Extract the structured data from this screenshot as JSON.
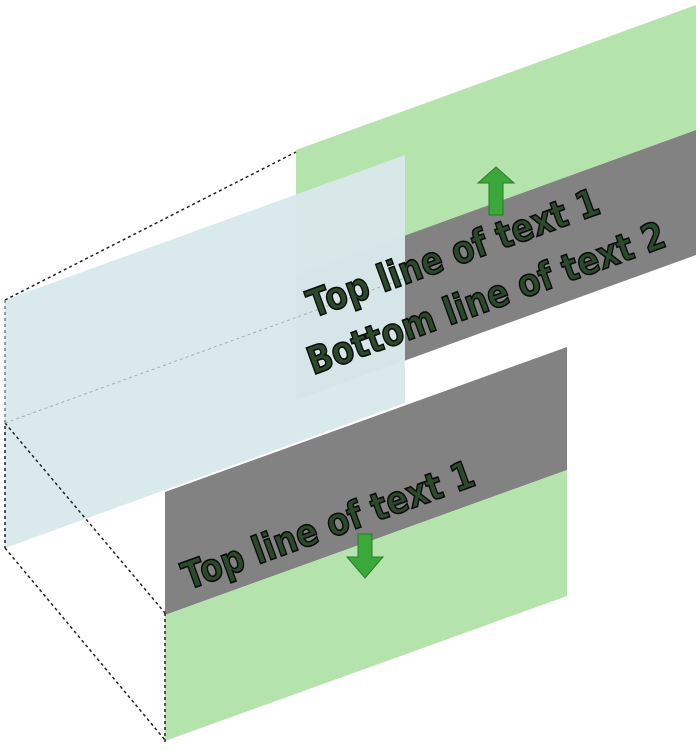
{
  "upper_panel": {
    "line_1": "Top line of text 1",
    "line_2": "Bottom line of text 2"
  },
  "lower_panel": {
    "line_1": "Top line of text 1"
  },
  "colors": {
    "green_panel": "#b5e3ac",
    "gray_band": "#828282",
    "blue_plane": "#d9e8ea",
    "arrow": "#3aa83a",
    "text_fill": "#2b4a2b",
    "text_outline": "#0a0a0a",
    "dashed_line": "#222222"
  },
  "icons": {
    "upper_arrow": "arrow-up-icon",
    "lower_arrow": "arrow-down-icon"
  }
}
